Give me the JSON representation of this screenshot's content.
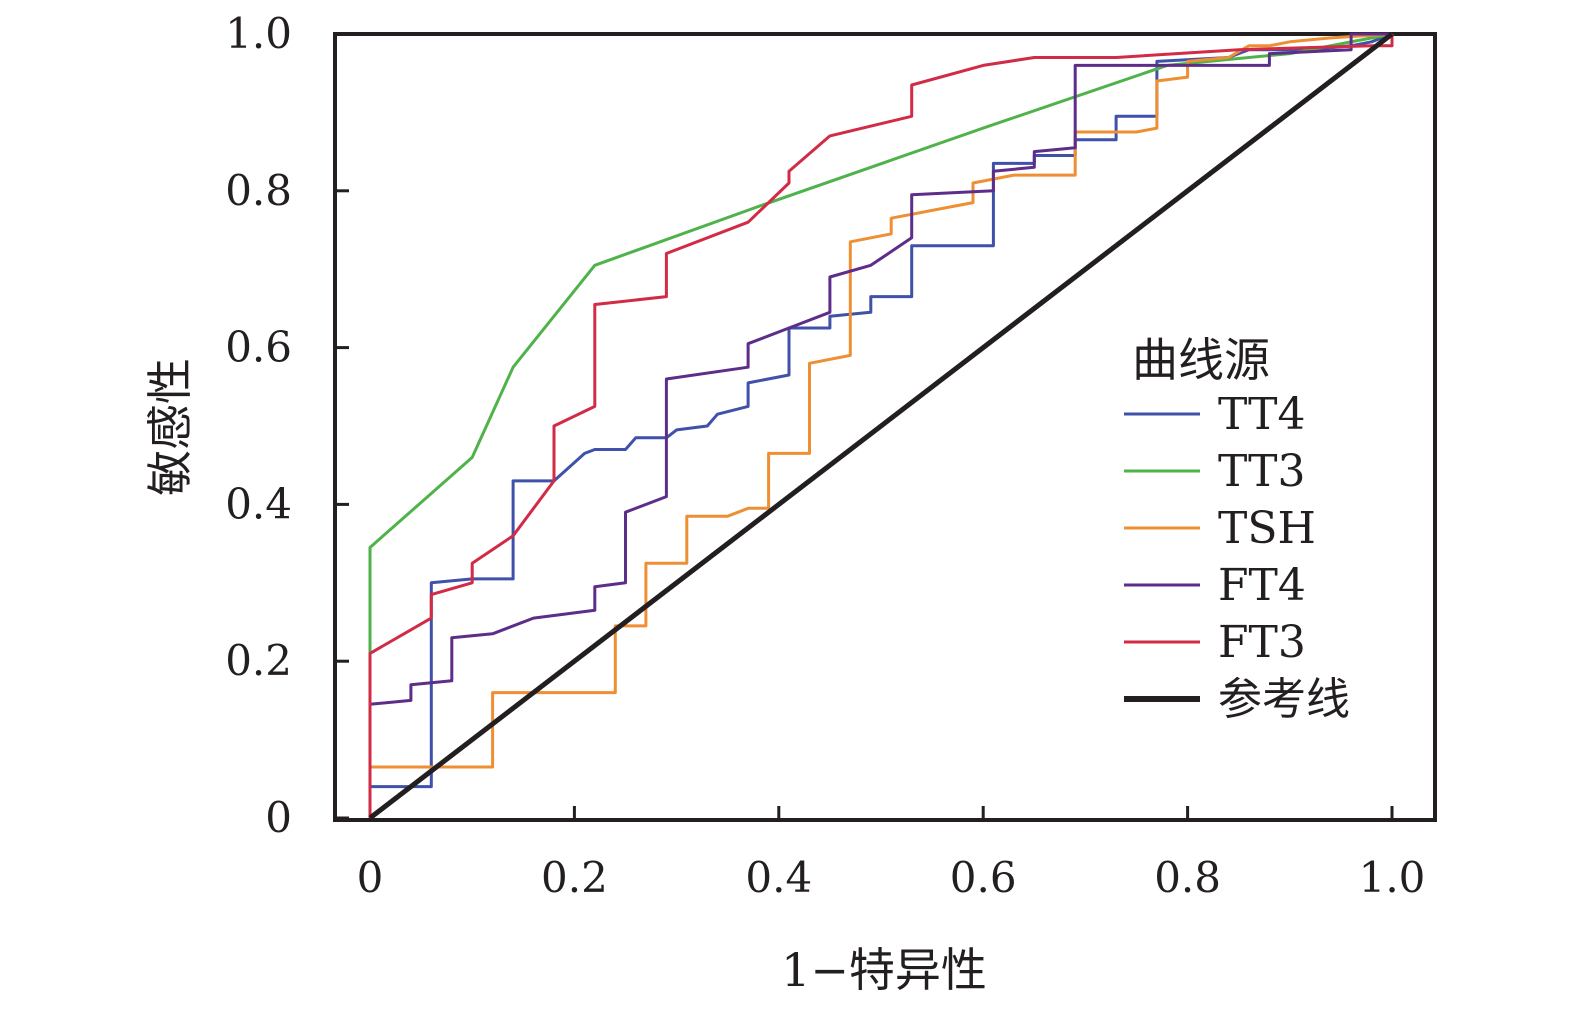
{
  "chart_data": {
    "type": "line",
    "title": "",
    "xlabel": "1−特异性",
    "ylabel": "敏感性",
    "xlim": [
      0,
      1.0
    ],
    "ylim": [
      0,
      1.0
    ],
    "x_ticks": [
      {
        "value": 0,
        "label": "0"
      },
      {
        "value": 0.2,
        "label": "0.2"
      },
      {
        "value": 0.4,
        "label": "0.4"
      },
      {
        "value": 0.6,
        "label": "0.6"
      },
      {
        "value": 0.8,
        "label": "0.8"
      },
      {
        "value": 1.0,
        "label": "1.0"
      }
    ],
    "y_ticks": [
      {
        "value": 0,
        "label": "0"
      },
      {
        "value": 0.2,
        "label": "0.2"
      },
      {
        "value": 0.4,
        "label": "0.4"
      },
      {
        "value": 0.6,
        "label": "0.6"
      },
      {
        "value": 0.8,
        "label": "0.8"
      },
      {
        "value": 1.0,
        "label": "1.0"
      }
    ],
    "grid": false,
    "legend": {
      "title": "曲线源",
      "position": "right-center"
    },
    "series": [
      {
        "name": "TT4",
        "color": "#3f51a8",
        "x": [
          0,
          0,
          0.06,
          0.06,
          0.1,
          0.14,
          0.14,
          0.18,
          0.21,
          0.22,
          0.25,
          0.26,
          0.29,
          0.3,
          0.33,
          0.34,
          0.37,
          0.37,
          0.41,
          0.41,
          0.45,
          0.45,
          0.49,
          0.49,
          0.53,
          0.53,
          0.61,
          0.61,
          0.65,
          0.65,
          0.69,
          0.69,
          0.73,
          0.73,
          0.77,
          0.77,
          0.84,
          0.86,
          0.88,
          0.92,
          0.96,
          0.98,
          1.0
        ],
        "y": [
          0,
          0.04,
          0.04,
          0.3,
          0.305,
          0.305,
          0.43,
          0.43,
          0.465,
          0.47,
          0.47,
          0.485,
          0.485,
          0.495,
          0.5,
          0.515,
          0.525,
          0.555,
          0.565,
          0.625,
          0.625,
          0.64,
          0.645,
          0.665,
          0.665,
          0.73,
          0.73,
          0.835,
          0.835,
          0.845,
          0.845,
          0.865,
          0.865,
          0.895,
          0.895,
          0.965,
          0.97,
          0.98,
          0.98,
          0.98,
          0.985,
          0.99,
          1.0
        ]
      },
      {
        "name": "TT3",
        "color": "#4fb24a",
        "x": [
          0,
          0,
          0.1,
          0.14,
          0.22,
          0.38,
          0.6,
          0.78,
          0.9,
          1.0
        ],
        "y": [
          0,
          0.345,
          0.46,
          0.575,
          0.705,
          0.78,
          0.88,
          0.96,
          0.975,
          1.0
        ]
      },
      {
        "name": "TSH",
        "color": "#ee8f33",
        "x": [
          0,
          0,
          0.12,
          0.12,
          0.24,
          0.24,
          0.27,
          0.27,
          0.31,
          0.31,
          0.35,
          0.37,
          0.39,
          0.39,
          0.43,
          0.43,
          0.47,
          0.47,
          0.51,
          0.51,
          0.57,
          0.59,
          0.59,
          0.63,
          0.69,
          0.69,
          0.75,
          0.77,
          0.77,
          0.8,
          0.8,
          0.84,
          0.86,
          0.88,
          0.9,
          0.94,
          1.0
        ],
        "y": [
          0,
          0.065,
          0.065,
          0.16,
          0.16,
          0.245,
          0.245,
          0.325,
          0.325,
          0.385,
          0.385,
          0.395,
          0.395,
          0.465,
          0.465,
          0.58,
          0.59,
          0.735,
          0.745,
          0.765,
          0.78,
          0.785,
          0.81,
          0.82,
          0.82,
          0.875,
          0.875,
          0.88,
          0.94,
          0.945,
          0.965,
          0.97,
          0.985,
          0.985,
          0.99,
          0.995,
          1.0
        ]
      },
      {
        "name": "FT4",
        "color": "#5e2d8a",
        "x": [
          0,
          0,
          0.04,
          0.04,
          0.08,
          0.08,
          0.12,
          0.16,
          0.22,
          0.22,
          0.25,
          0.25,
          0.29,
          0.29,
          0.37,
          0.37,
          0.41,
          0.45,
          0.45,
          0.49,
          0.53,
          0.53,
          0.61,
          0.61,
          0.65,
          0.65,
          0.69,
          0.69,
          0.76,
          0.77,
          0.88,
          0.88,
          0.96,
          0.96,
          1.0
        ],
        "y": [
          0,
          0.145,
          0.15,
          0.17,
          0.175,
          0.23,
          0.235,
          0.255,
          0.265,
          0.295,
          0.3,
          0.39,
          0.41,
          0.56,
          0.575,
          0.605,
          0.625,
          0.645,
          0.69,
          0.705,
          0.74,
          0.795,
          0.8,
          0.825,
          0.83,
          0.85,
          0.855,
          0.96,
          0.96,
          0.96,
          0.96,
          0.975,
          0.98,
          1.0,
          1.0
        ]
      },
      {
        "name": "FT3",
        "color": "#d12b46",
        "x": [
          0,
          0,
          0.06,
          0.06,
          0.1,
          0.1,
          0.14,
          0.18,
          0.18,
          0.22,
          0.22,
          0.29,
          0.29,
          0.37,
          0.41,
          0.41,
          0.45,
          0.53,
          0.53,
          0.6,
          0.65,
          0.73,
          0.85,
          0.98,
          1.0,
          1.0
        ],
        "y": [
          0,
          0.21,
          0.255,
          0.285,
          0.3,
          0.325,
          0.36,
          0.43,
          0.5,
          0.525,
          0.655,
          0.665,
          0.72,
          0.76,
          0.81,
          0.825,
          0.87,
          0.895,
          0.935,
          0.96,
          0.97,
          0.97,
          0.98,
          0.985,
          0.985,
          1.0
        ]
      },
      {
        "name": "参考线",
        "color": "#231f20",
        "x": [
          0,
          1.0
        ],
        "y": [
          0,
          1.0
        ]
      }
    ]
  }
}
